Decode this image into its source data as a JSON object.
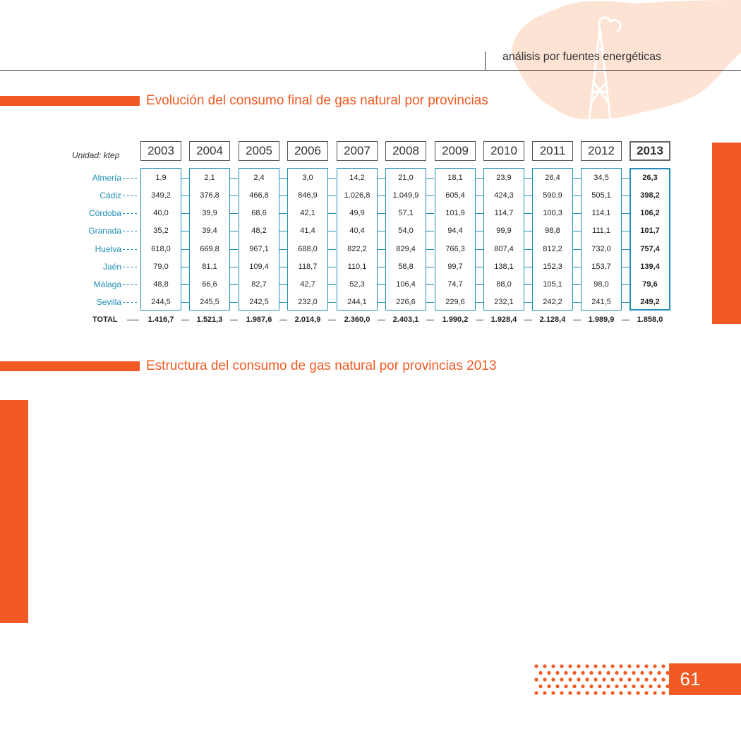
{
  "header": {
    "title": "análisis por fuentes energéticas"
  },
  "section1": {
    "title": "Evolución del consumo final de gas natural por provincias"
  },
  "section2": {
    "title": "Estructura del consumo de gas natural por provincias 2013"
  },
  "table": {
    "unit_label": "Unidad: ktep",
    "highlight_year": "2013",
    "years": [
      "2003",
      "2004",
      "2005",
      "2006",
      "2007",
      "2008",
      "2009",
      "2010",
      "2011",
      "2012",
      "2013"
    ],
    "provinces": [
      "Almería",
      "Cádiz",
      "Córdoba",
      "Granada",
      "Huelva",
      "Jaén",
      "Málaga",
      "Sevilla"
    ],
    "values": [
      [
        "1,9",
        "349,2",
        "40,0",
        "35,2",
        "618,0",
        "79,0",
        "48,8",
        "244,5"
      ],
      [
        "2,1",
        "376,8",
        "39,9",
        "39,4",
        "669,8",
        "81,1",
        "66,6",
        "245,5"
      ],
      [
        "2,4",
        "466,8",
        "68,6",
        "48,2",
        "967,1",
        "109,4",
        "82,7",
        "242,5"
      ],
      [
        "3,0",
        "846,9",
        "42,1",
        "41,4",
        "688,0",
        "118,7",
        "42,7",
        "232,0"
      ],
      [
        "14,2",
        "1.026,8",
        "49,9",
        "40,4",
        "822,2",
        "110,1",
        "52,3",
        "244,1"
      ],
      [
        "21,0",
        "1.049,9",
        "57,1",
        "54,0",
        "829,4",
        "58,8",
        "106,4",
        "226,6"
      ],
      [
        "18,1",
        "605,4",
        "101,9",
        "94,4",
        "766,3",
        "99,7",
        "74,7",
        "229,6"
      ],
      [
        "23,9",
        "424,3",
        "114,7",
        "99,9",
        "807,4",
        "138,1",
        "88,0",
        "232,1"
      ],
      [
        "26,4",
        "590,9",
        "100,3",
        "98,8",
        "812,2",
        "152,3",
        "105,1",
        "242,2"
      ],
      [
        "34,5",
        "505,1",
        "114,1",
        "111,1",
        "732,0",
        "153,7",
        "98,0",
        "241,5"
      ],
      [
        "26,3",
        "398,2",
        "106,2",
        "101,7",
        "757,4",
        "139,4",
        "79,6",
        "249,2"
      ]
    ],
    "total_label": "TOTAL",
    "totals": [
      "1.416,7",
      "1.521,3",
      "1.987,6",
      "2.014,9",
      "2.360,0",
      "2.403,1",
      "1.990,2",
      "1.928,4",
      "2.128,4",
      "1.989,9",
      "1.858,0"
    ]
  },
  "footer": {
    "page_number": "61"
  },
  "colors": {
    "accent": "#f15a24",
    "table_blue": "#1f8fb5"
  },
  "icons": {
    "background": "andalusia-map-icon",
    "derrick": "gas-derrick-icon"
  }
}
